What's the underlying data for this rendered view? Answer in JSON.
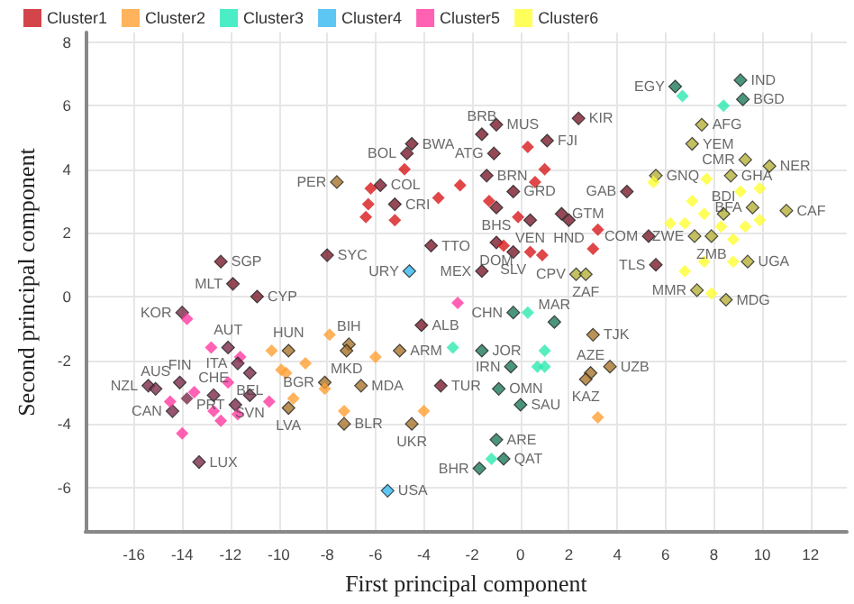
{
  "chart_data": {
    "type": "scatter",
    "xlabel": "First principal component",
    "ylabel": "Second principal component",
    "xlim": [
      -18,
      13.5
    ],
    "ylim": [
      -7.4,
      8.3
    ],
    "xticks": [
      -16,
      -14,
      -12,
      -10,
      -8,
      -6,
      -4,
      -2,
      0,
      2,
      4,
      6,
      8,
      10,
      12
    ],
    "yticks": [
      -6,
      -4,
      -2,
      0,
      2,
      4,
      6,
      8
    ],
    "grid": true,
    "legend": "top left",
    "marker": "diamond",
    "series": [
      {
        "name": "Cluster1",
        "color": "#c8161d",
        "x": [
          -4.5,
          -4.7,
          -4.8,
          -5.8,
          -6.2,
          -6.3,
          -6.4,
          -5.2,
          -5.2,
          -3.4,
          -8.0,
          -3.7,
          -12.4,
          -11.9,
          -10.9,
          2.4,
          1.1,
          0.3,
          1.0,
          0.6,
          -1.0,
          -1.6,
          -1.1,
          -1.4,
          -2.5,
          -0.3,
          -1.3,
          -1.0,
          1.7,
          2.0,
          3.2,
          0.4,
          -0.1,
          3.0,
          -1.0,
          -0.7,
          -0.3,
          0.4,
          0.9,
          -1.6,
          4.4,
          5.3,
          5.6,
          -4.1,
          -3.3
        ],
        "values": [
          4.8,
          4.5,
          4.0,
          3.5,
          3.4,
          2.9,
          2.5,
          2.9,
          2.4,
          3.1,
          1.3,
          1.6,
          1.1,
          0.4,
          0.0,
          5.6,
          4.9,
          4.7,
          4.0,
          3.6,
          5.4,
          5.1,
          4.5,
          3.8,
          3.5,
          3.3,
          3.0,
          2.8,
          2.6,
          2.4,
          2.1,
          2.4,
          2.5,
          1.5,
          1.7,
          1.6,
          1.4,
          1.4,
          1.3,
          0.8,
          3.3,
          1.9,
          1.0,
          -0.9,
          -2.8
        ],
        "colors": [
          "#7b1c2c",
          "#7b1c2c",
          "#d7191c",
          "#7b1c2c",
          "#d7191c",
          "#d7191c",
          "#d7191c",
          "#7b1c2c",
          "#d7191c",
          "#d7191c",
          "#7b1c2c",
          "#7b1c2c",
          "#7b1c2c",
          "#7b1c2c",
          "#7b1c2c",
          "#7b1c2c",
          "#7b1c2c",
          "#d7191c",
          "#d7191c",
          "#d7191c",
          "#7b1c2c",
          "#7b1c2c",
          "#7b1c2c",
          "#7b1c2c",
          "#d7191c",
          "#7b1c2c",
          "#d7191c",
          "#7b1c2c",
          "#7b1c2c",
          "#7b1c2c",
          "#d7191c",
          "#7b1c2c",
          "#d7191c",
          "#d7191c",
          "#7b1c2c",
          "#d7191c",
          "#7b1c2c",
          "#d7191c",
          "#d7191c",
          "#7b1c2c",
          "#7b1c2c",
          "#7b1c2c",
          "#7b1c2c",
          "#7b1c2c",
          "#7b1c2c"
        ],
        "value_labels": [
          "BWA",
          "BOL",
          null,
          "COL",
          null,
          null,
          null,
          "CRI",
          null,
          null,
          "SYC",
          "TTO",
          "SGP",
          "MLT",
          "CYP",
          "KIR",
          "FJI",
          null,
          null,
          null,
          "MUS",
          "BRB",
          "ATG",
          "BRN",
          null,
          "GRD",
          null,
          "BHS",
          "GTM",
          "HND",
          null,
          "VEN",
          null,
          null,
          "DOM",
          null,
          "SLV",
          null,
          null,
          "MEX",
          "GAB",
          "COM",
          "TLS",
          "ALB",
          "TUR"
        ]
      },
      {
        "name": "Cluster2",
        "color": "#ffa033",
        "x": [
          -7.6,
          -7.1,
          -7.2,
          -9.6,
          -10.3,
          -7.9,
          -8.9,
          -9.9,
          -9.7,
          -5.0,
          -6.0,
          -9.4,
          -9.6,
          -8.1,
          -8.1,
          -6.6,
          -7.3,
          -7.3,
          -4.5,
          -4.0,
          3.0,
          2.9,
          2.7,
          3.7,
          3.2
        ],
        "values": [
          3.6,
          -1.5,
          -1.7,
          -1.7,
          -1.7,
          -1.2,
          -2.1,
          -2.3,
          -2.4,
          -1.7,
          -1.9,
          -3.2,
          -3.5,
          -2.7,
          -2.9,
          -2.8,
          -3.6,
          -4.0,
          -4.0,
          -3.6,
          -1.2,
          -2.4,
          -2.6,
          -2.2,
          -3.8
        ],
        "colors": [
          "#a8742a",
          "#a8742a",
          "#a8742a",
          "#a8742a",
          "#ffa033",
          "#ffa033",
          "#ffa033",
          "#ffa033",
          "#ffa033",
          "#a8742a",
          "#ffa033",
          "#ffa033",
          "#a8742a",
          "#a8742a",
          "#ffa033",
          "#a8742a",
          "#ffa033",
          "#a8742a",
          "#a8742a",
          "#ffa033",
          "#a8742a",
          "#a8742a",
          "#a8742a",
          "#a8742a",
          "#ffa033"
        ],
        "value_labels": [
          "PER",
          "BIH",
          "MKD",
          "HUN",
          null,
          null,
          null,
          null,
          null,
          "ARM",
          null,
          null,
          "LVA",
          "BGR",
          null,
          "MDA",
          null,
          "BLR",
          "UKR",
          null,
          "TJK",
          "AZE",
          "KAZ",
          "UZB",
          null
        ]
      },
      {
        "name": "Cluster3",
        "color": "#1de9b6",
        "x": [
          6.4,
          6.7,
          9.1,
          8.4,
          9.2,
          -0.3,
          0.3,
          1.4,
          -1.6,
          -2.8,
          1.0,
          -0.4,
          0.7,
          1.0,
          -0.9,
          0.0,
          -1.0,
          -0.7,
          -1.2,
          -1.7
        ],
        "values": [
          6.6,
          6.3,
          6.8,
          6.0,
          6.2,
          -0.5,
          -0.5,
          -0.8,
          -1.7,
          -1.6,
          -1.7,
          -2.2,
          -2.2,
          -2.2,
          -2.9,
          -3.4,
          -4.5,
          -5.1,
          -5.1,
          -5.4
        ],
        "colors": [
          "#1f7a5c",
          "#2ee8b0",
          "#1f7a5c",
          "#2ee8b0",
          "#1f7a5c",
          "#1f7a5c",
          "#2ee8b0",
          "#1f7a5c",
          "#1f7a5c",
          "#2ee8b0",
          "#2ee8b0",
          "#1f7a5c",
          "#2ee8b0",
          "#2ee8b0",
          "#1f7a5c",
          "#1f7a5c",
          "#1f7a5c",
          "#1f7a5c",
          "#2ee8b0",
          "#1f7a5c"
        ],
        "value_labels": [
          "EGY",
          null,
          "IND",
          null,
          "BGD",
          "CHN",
          null,
          "MAR",
          "JOR",
          null,
          null,
          "IRN",
          null,
          null,
          "OMN",
          "SAU",
          "ARE",
          "QAT",
          null,
          "BHR"
        ]
      },
      {
        "name": "Cluster4",
        "color": "#35b8f0",
        "x": [
          -4.6,
          -5.5
        ],
        "values": [
          0.8,
          -6.1
        ],
        "colors": [
          "#35b8f0",
          "#35b8f0"
        ],
        "value_labels": [
          "URY",
          "USA"
        ]
      },
      {
        "name": "Cluster5",
        "color": "#ff3aa0",
        "x": [
          -14.0,
          -13.8,
          -12.1,
          -12.8,
          -11.6,
          -11.7,
          -14.1,
          -15.4,
          -15.1,
          -12.7,
          -12.1,
          -11.2,
          -11.8,
          -11.2,
          -11.7,
          -10.4,
          -14.4,
          -14.5,
          -13.8,
          -13.5,
          -12.7,
          -12.4,
          -14.0,
          -13.3,
          -2.6
        ],
        "values": [
          -0.5,
          -0.7,
          -1.6,
          -1.6,
          -1.9,
          -2.1,
          -2.7,
          -2.8,
          -2.9,
          -3.1,
          -2.7,
          -2.4,
          -3.4,
          -3.1,
          -3.7,
          -3.3,
          -3.6,
          -3.3,
          -3.2,
          -3.0,
          -3.6,
          -3.9,
          -4.3,
          -5.2,
          -0.2
        ],
        "colors": [
          "#7a2a4a",
          "#ff3aa0",
          "#7a2a4a",
          "#ff3aa0",
          "#ff3aa0",
          "#7a2a4a",
          "#7a2a4a",
          "#7a2a4a",
          "#7a2a4a",
          "#7a2a4a",
          "#ff3aa0",
          "#7a2a4a",
          "#7a2a4a",
          "#7a2a4a",
          "#ff3aa0",
          "#ff3aa0",
          "#7a2a4a",
          "#ff3aa0",
          "#7a2a4a",
          "#ff3aa0",
          "#ff3aa0",
          "#ff3aa0",
          "#ff3aa0",
          "#7a2a4a",
          "#ff3aa0"
        ],
        "value_labels": [
          "KOR",
          null,
          "AUT",
          null,
          null,
          "ITA",
          "FIN",
          "NZL",
          "AUS",
          "CHE",
          null,
          "BEL",
          "PRT",
          "SVN",
          null,
          null,
          "CAN",
          null,
          null,
          null,
          null,
          null,
          null,
          "LUX",
          null
        ]
      },
      {
        "name": "Cluster6",
        "color": "#ffff33",
        "x": [
          7.5,
          7.1,
          9.3,
          10.3,
          8.7,
          5.6,
          5.5,
          7.7,
          9.1,
          9.9,
          9.6,
          11.0,
          8.4,
          7.1,
          7.6,
          6.2,
          6.8,
          8.3,
          9.3,
          9.9,
          7.9,
          7.2,
          8.8,
          7.6,
          8.8,
          6.8,
          9.4,
          7.3,
          7.9,
          8.5,
          2.3,
          2.7
        ],
        "values": [
          5.4,
          4.8,
          4.3,
          4.1,
          3.8,
          3.8,
          3.6,
          3.7,
          3.3,
          3.4,
          2.8,
          2.7,
          2.6,
          3.0,
          2.6,
          2.3,
          2.3,
          2.2,
          2.2,
          2.4,
          1.9,
          1.9,
          1.8,
          1.1,
          1.1,
          0.8,
          1.1,
          0.2,
          0.1,
          -0.1,
          0.7,
          0.7
        ],
        "colors": [
          "#b5b03a",
          "#b5b03a",
          "#b5b03a",
          "#b5b03a",
          "#b5b03a",
          "#b5b03a",
          "#ffff33",
          "#ffff33",
          "#ffff33",
          "#ffff33",
          "#b5b03a",
          "#b5b03a",
          "#b5b03a",
          "#ffff33",
          "#ffff33",
          "#ffff33",
          "#ffff33",
          "#ffff33",
          "#ffff33",
          "#ffff33",
          "#b5b03a",
          "#b5b03a",
          "#ffff33",
          "#ffff33",
          "#ffff33",
          "#ffff33",
          "#b5b03a",
          "#b5b03a",
          "#ffff33",
          "#b5b03a",
          "#b5b03a",
          "#b5b03a"
        ],
        "value_labels": [
          "AFG",
          "YEM",
          "CMR",
          "NER",
          "GHA",
          "GNQ",
          null,
          null,
          null,
          null,
          "BFA",
          "CAF",
          "BDI",
          null,
          null,
          null,
          null,
          null,
          null,
          null,
          "ZMB",
          "ZWE",
          null,
          null,
          null,
          null,
          "UGA",
          "MMR",
          null,
          "MDG",
          "CPV",
          "ZAF"
        ]
      }
    ]
  }
}
